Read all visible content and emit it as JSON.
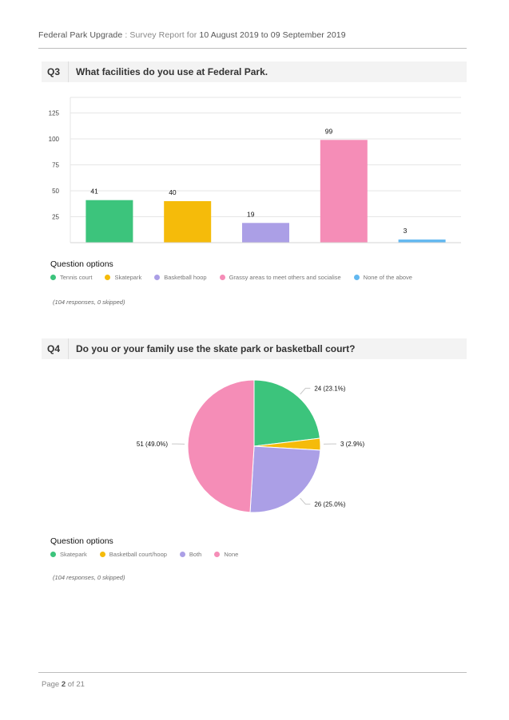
{
  "header": {
    "title_part": "Federal Park Upgrade",
    "separator": " : ",
    "report_label": "Survey Report for ",
    "date_range": "10 August 2019 to 09 September 2019"
  },
  "q3": {
    "number": "Q3",
    "question": "What facilities do you use at Federal Park.",
    "options_title": "Question options",
    "note": "(104 responses, 0 skipped)"
  },
  "q4": {
    "number": "Q4",
    "question": "Do you or your family use the skate park or basketball court?",
    "options_title": "Question options",
    "note": "(104 responses, 0 skipped)"
  },
  "footer": {
    "page_prefix": "Page ",
    "page_number": "2",
    "page_suffix": " of 21"
  },
  "chart_data": [
    {
      "type": "bar",
      "categories": [
        "Tennis court",
        "Skatepark",
        "Basketball hoop",
        "Grassy areas to meet others and socialise",
        "None of the above"
      ],
      "values": [
        41,
        40,
        19,
        99,
        3
      ],
      "colors": [
        "#3cc47c",
        "#f5bb0a",
        "#ab9fe6",
        "#f58db7",
        "#62b8f0"
      ],
      "yticks": [
        25,
        50,
        75,
        100,
        125
      ],
      "ylim": [
        0,
        140
      ],
      "grid": true,
      "legend_position": "bottom-left"
    },
    {
      "type": "pie",
      "categories": [
        "Skatepark",
        "Basketball court/hoop",
        "Both",
        "None"
      ],
      "values": [
        24,
        3,
        26,
        51
      ],
      "labels": [
        "24 (23.1%)",
        "3 (2.9%)",
        "26 (25.0%)",
        "51 (49.0%)"
      ],
      "colors": [
        "#3cc47c",
        "#f5bb0a",
        "#ab9fe6",
        "#f58db7"
      ],
      "legend_position": "bottom-left"
    }
  ]
}
